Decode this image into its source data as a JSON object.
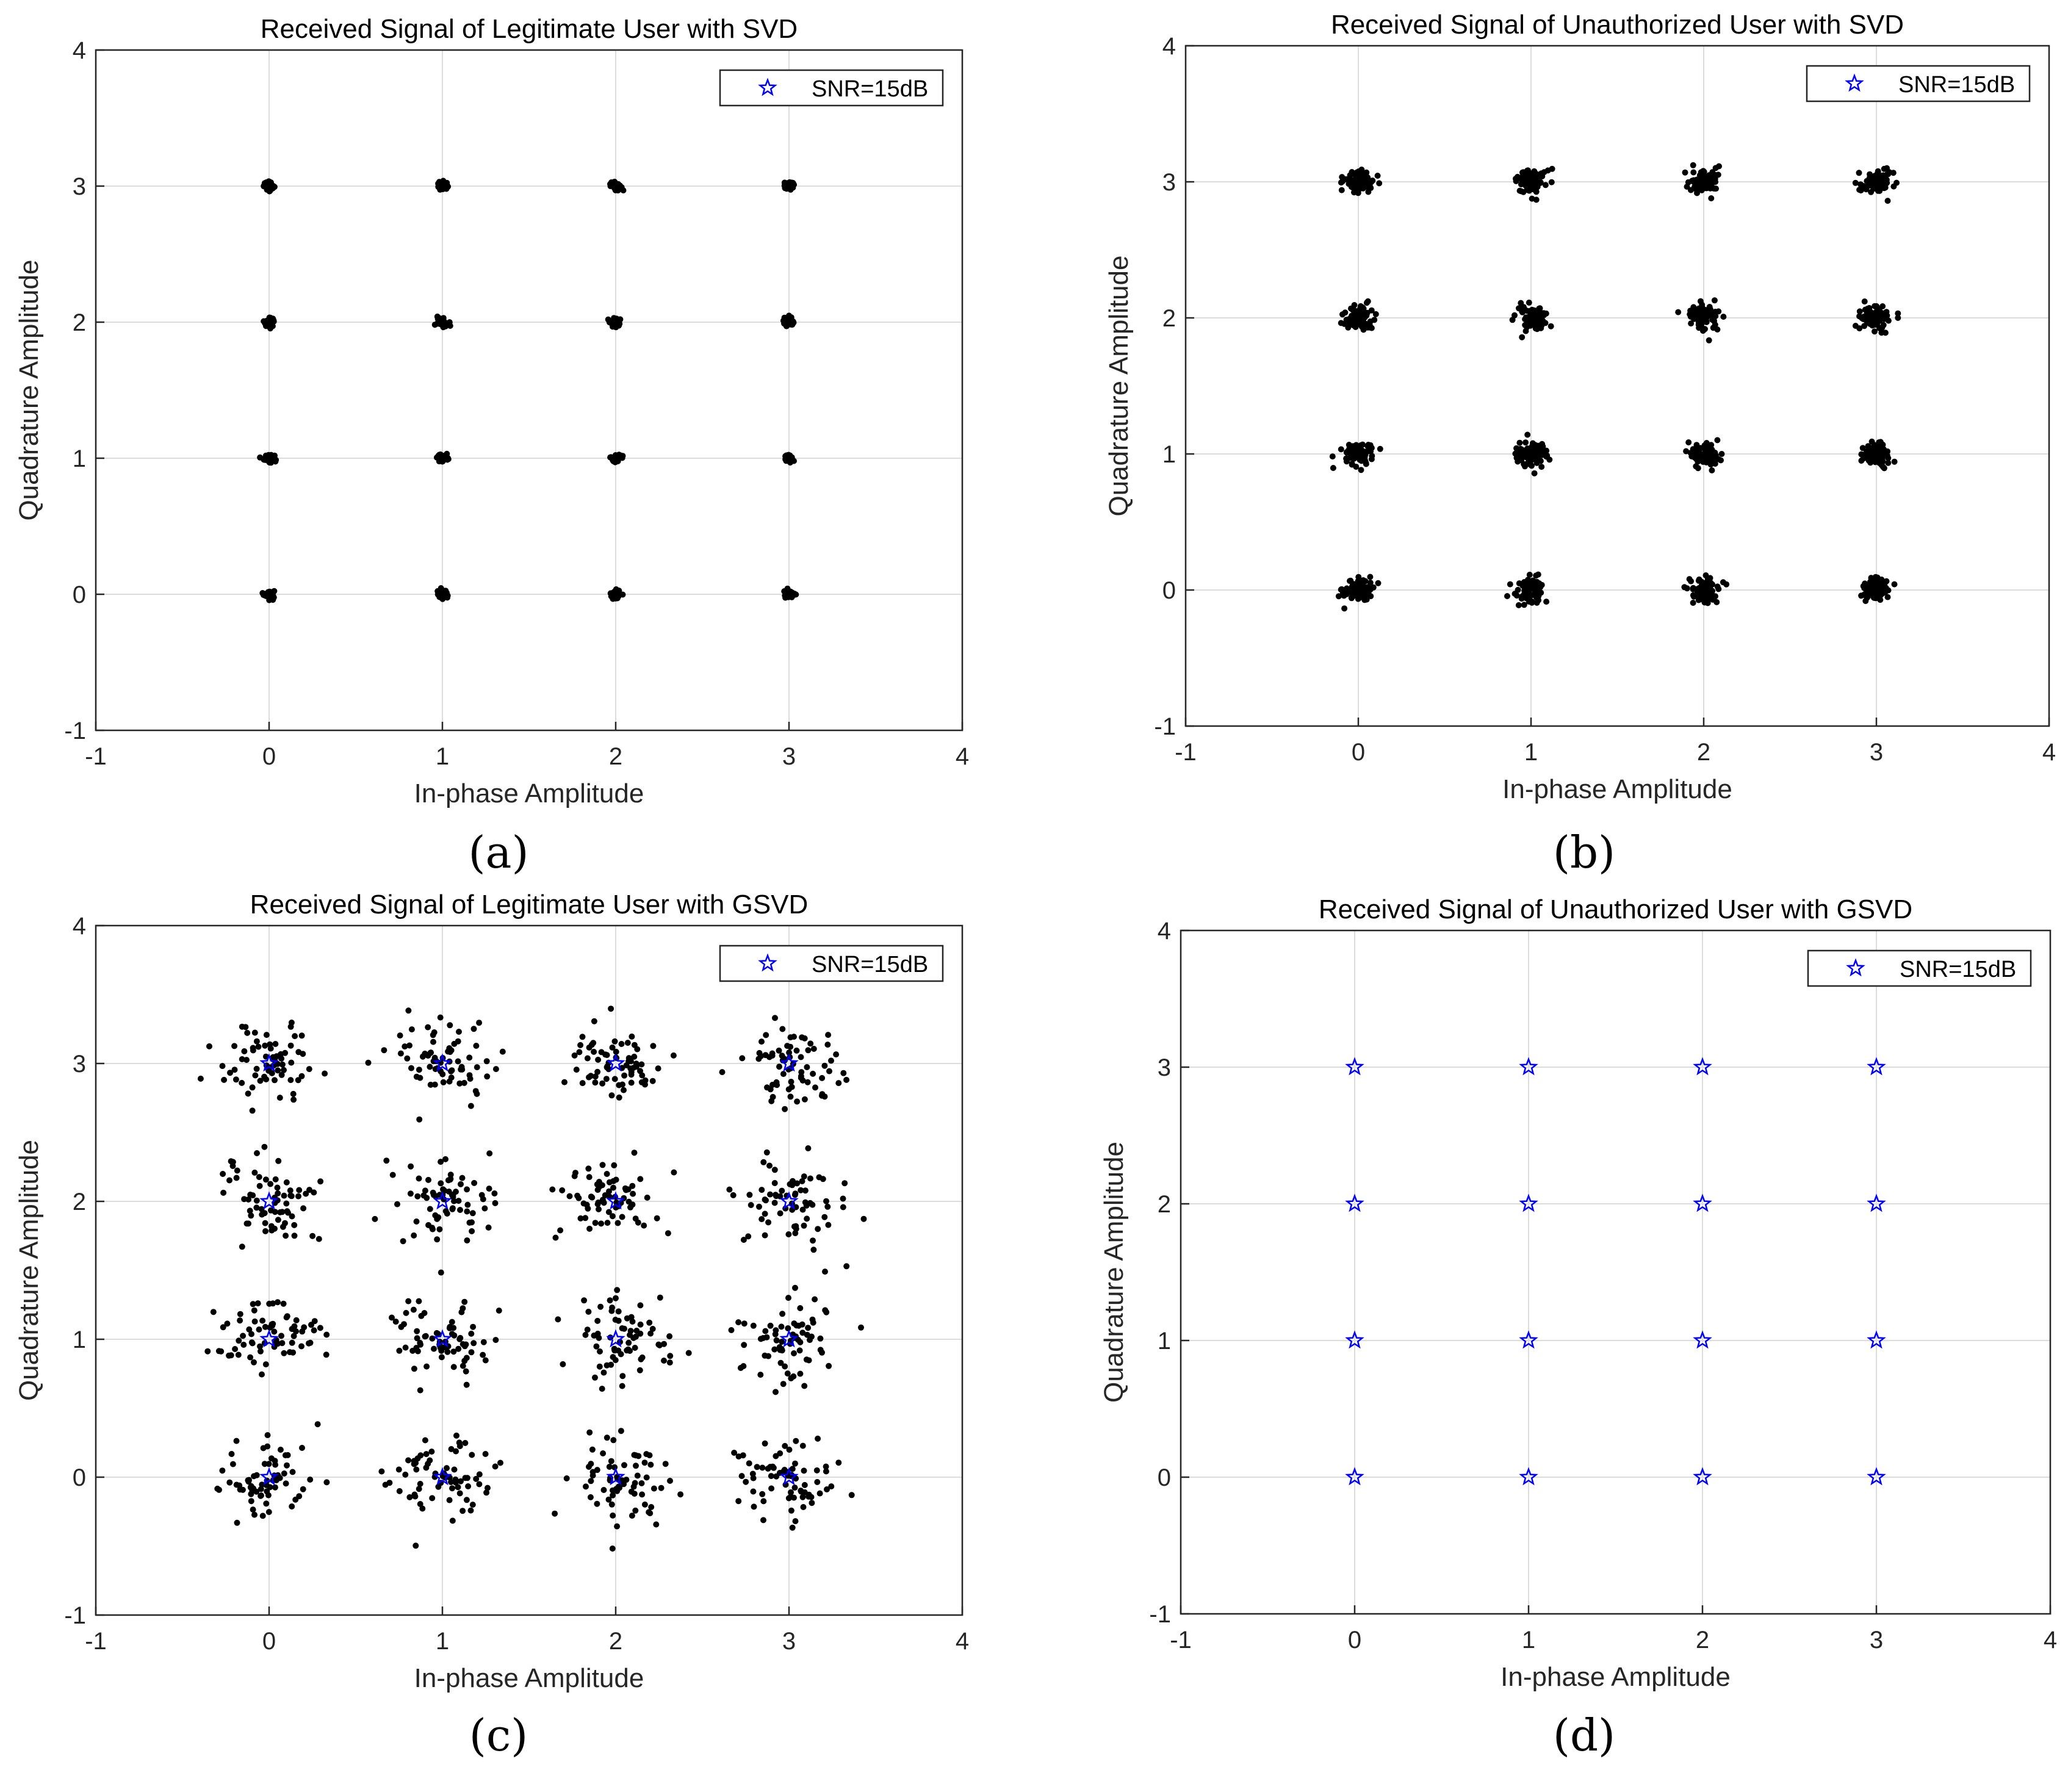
{
  "figure": {
    "captions": [
      "(a)",
      "(b)",
      "(c)",
      "(d)"
    ]
  },
  "colors": {
    "points": "#000000",
    "stars": "#0000ff",
    "grid": "#dcdcdc",
    "axes": "#262626"
  },
  "chart_data": [
    {
      "type": "scatter",
      "title": "Received Signal of Legitimate User with SVD",
      "xlabel": "In-phase Amplitude",
      "ylabel": "Quadrature Amplitude",
      "xlim": [
        -1,
        4
      ],
      "ylim": [
        -1,
        4
      ],
      "xticks": [
        "-1",
        "0",
        "1",
        "2",
        "3",
        "4"
      ],
      "yticks": [
        "-1",
        "0",
        "1",
        "2",
        "3",
        "4"
      ],
      "grid": true,
      "legend": {
        "label": "SNR=15dB",
        "marker": "star",
        "position": "top-right"
      },
      "constellation": {
        "i": [
          0,
          1,
          2,
          3
        ],
        "q": [
          0,
          1,
          2,
          3
        ]
      },
      "noise_spread": 0.015,
      "points_per_cluster": 50,
      "stars_visible": false
    },
    {
      "type": "scatter",
      "title": "Received Signal of Unauthorized User with SVD",
      "xlabel": "In-phase Amplitude",
      "ylabel": "Quadrature Amplitude",
      "xlim": [
        -1,
        4
      ],
      "ylim": [
        -1,
        4
      ],
      "xticks": [
        "-1",
        "0",
        "1",
        "2",
        "3",
        "4"
      ],
      "yticks": [
        "-1",
        "0",
        "1",
        "2",
        "3",
        "4"
      ],
      "grid": true,
      "legend": {
        "label": "SNR=15dB",
        "marker": "star",
        "position": "top-right"
      },
      "constellation": {
        "i": [
          0,
          1,
          2,
          3
        ],
        "q": [
          0,
          1,
          2,
          3
        ]
      },
      "noise_spread": 0.045,
      "points_per_cluster": 80,
      "stars_visible": false
    },
    {
      "type": "scatter",
      "title": "Received Signal of Legitimate User with GSVD",
      "xlabel": "In-phase Amplitude",
      "ylabel": "Quadrature Amplitude",
      "xlim": [
        -1,
        4
      ],
      "ylim": [
        -1,
        4
      ],
      "xticks": [
        "-1",
        "0",
        "1",
        "2",
        "3",
        "4"
      ],
      "yticks": [
        "-1",
        "0",
        "1",
        "2",
        "3",
        "4"
      ],
      "grid": true,
      "legend": {
        "label": "SNR=15dB",
        "marker": "star",
        "position": "top-right"
      },
      "constellation": {
        "i": [
          0,
          1,
          2,
          3
        ],
        "q": [
          0,
          1,
          2,
          3
        ]
      },
      "noise_spread": 0.15,
      "points_per_cluster": 70,
      "stars_visible": true
    },
    {
      "type": "scatter",
      "title": "Received Signal of Unauthorized User with GSVD",
      "xlabel": "In-phase Amplitude",
      "ylabel": "Quadrature Amplitude",
      "xlim": [
        -1,
        4
      ],
      "ylim": [
        -1,
        4
      ],
      "xticks": [
        "-1",
        "0",
        "1",
        "2",
        "3",
        "4"
      ],
      "yticks": [
        "-1",
        "0",
        "1",
        "2",
        "3",
        "4"
      ],
      "grid": true,
      "legend": {
        "label": "SNR=15dB",
        "marker": "star",
        "position": "top-right"
      },
      "constellation": {
        "i": [
          0,
          1,
          2,
          3
        ],
        "q": [
          0,
          1,
          2,
          3
        ]
      },
      "noise_spread": 0,
      "points_per_cluster": 1,
      "stars_visible": true
    }
  ]
}
